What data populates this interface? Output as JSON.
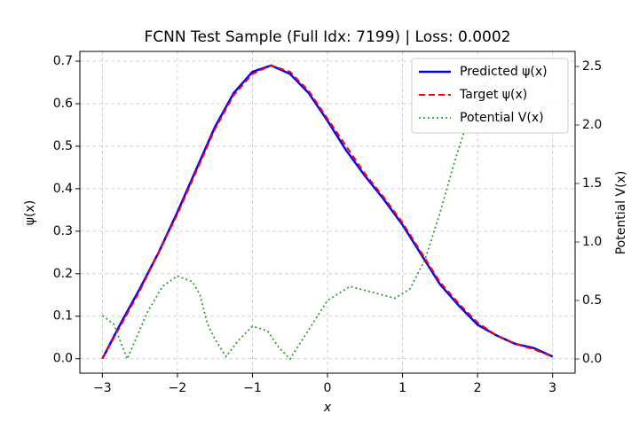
{
  "chart_data": {
    "type": "line",
    "title": "FCNN Test Sample (Full Idx: 7199) | Loss: 0.0002",
    "x_label": "x",
    "y_label": "ψ(x)",
    "y2_label": "Potential V(x)",
    "x": [
      -3,
      -2.75,
      -2.5,
      -2.25,
      -2,
      -1.75,
      -1.5,
      -1.25,
      -1,
      -0.75,
      -0.5,
      -0.25,
      0,
      0.25,
      0.5,
      0.75,
      1,
      1.25,
      1.5,
      1.75,
      2,
      2.25,
      2.5,
      2.75,
      3
    ],
    "series": [
      {
        "name": "Predicted ψ(x)",
        "color": "#0000ff",
        "style": "solid",
        "values": [
          0.0,
          0.085,
          0.165,
          0.25,
          0.345,
          0.445,
          0.545,
          0.625,
          0.675,
          0.69,
          0.67,
          0.625,
          0.56,
          0.49,
          0.43,
          0.375,
          0.315,
          0.245,
          0.175,
          0.125,
          0.08,
          0.055,
          0.035,
          0.025,
          0.005
        ]
      },
      {
        "name": "Target ψ(x)",
        "color": "#ff0000",
        "style": "dashed",
        "values": [
          0.0,
          0.08,
          0.16,
          0.25,
          0.34,
          0.44,
          0.54,
          0.62,
          0.67,
          0.69,
          0.675,
          0.63,
          0.565,
          0.5,
          0.435,
          0.38,
          0.32,
          0.25,
          0.18,
          0.13,
          0.085,
          0.055,
          0.035,
          0.022,
          0.005
        ]
      },
      {
        "name": "Potential V(x)",
        "color": "#2ca02c",
        "style": "dotted",
        "axis": "y2",
        "x": [
          -3,
          -2.85,
          -2.67,
          -2.4,
          -2.2,
          -2.0,
          -1.8,
          -1.7,
          -1.6,
          -1.5,
          -1.35,
          -1.2,
          -1.0,
          -0.8,
          -0.65,
          -0.5,
          -0.3,
          0,
          0.3,
          0.6,
          0.9,
          1.1,
          1.3,
          1.5,
          1.7,
          1.9,
          2.1,
          2.4,
          2.7,
          2.9
        ],
        "values": [
          0.37,
          0.3,
          0.0,
          0.4,
          0.62,
          0.71,
          0.66,
          0.55,
          0.3,
          0.17,
          0.02,
          0.15,
          0.28,
          0.24,
          0.1,
          0.0,
          0.2,
          0.5,
          0.62,
          0.57,
          0.52,
          0.6,
          0.85,
          1.25,
          1.7,
          2.1,
          2.35,
          2.5,
          2.5,
          2.5
        ]
      }
    ],
    "xlim": [
      -3.3,
      3.3
    ],
    "ylim": [
      -0.034,
      0.723
    ],
    "y2lim": [
      -0.121,
      2.629
    ],
    "xticks": [
      {
        "value": -3,
        "label": "−3"
      },
      {
        "value": -2,
        "label": "−2"
      },
      {
        "value": -1,
        "label": "−1"
      },
      0,
      1,
      2,
      3
    ],
    "yticks": [
      {
        "value": 0,
        "label": "0.0"
      },
      0.1,
      0.2,
      0.3,
      0.4,
      0.5,
      0.6,
      0.7
    ],
    "y2ticks": [
      {
        "value": 0,
        "label": "0.0"
      },
      0.5,
      {
        "value": 1,
        "label": "1.0"
      },
      1.5,
      {
        "value": 2,
        "label": "2.0"
      },
      2.5
    ],
    "grid": true,
    "legend": "upper right",
    "y2_color": "#008000"
  }
}
